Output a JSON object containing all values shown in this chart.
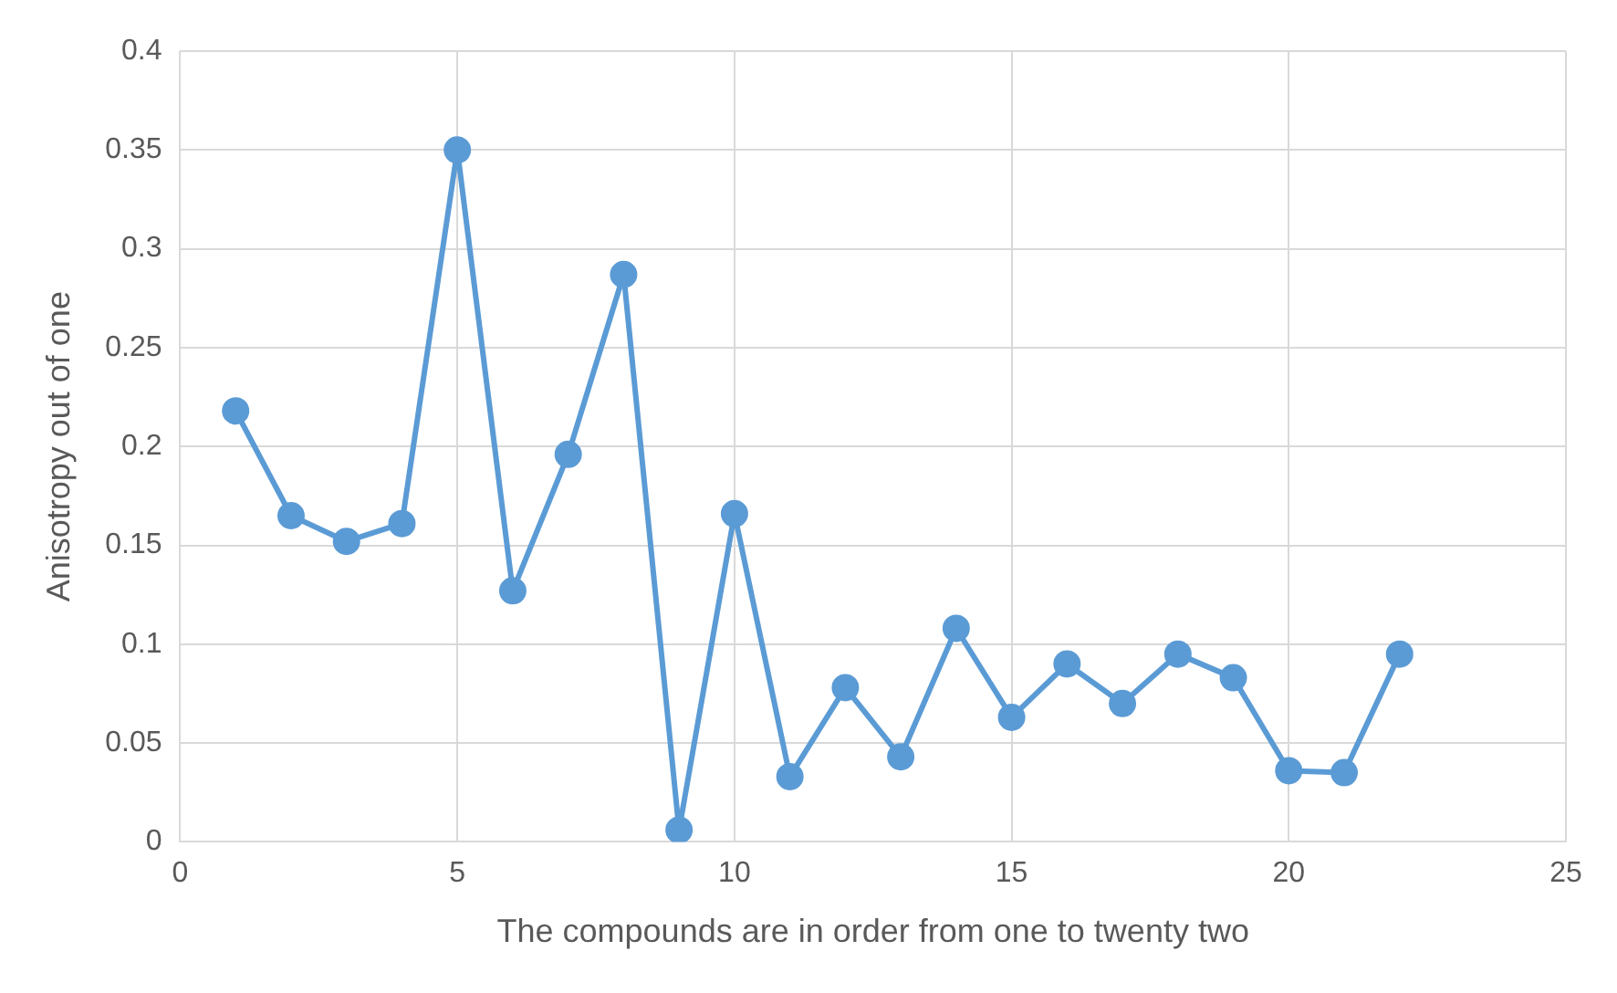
{
  "chart_data": {
    "type": "line",
    "xlabel": "The compounds are in order from one to twenty two",
    "ylabel": "Anisotropy out of one",
    "x": [
      1,
      2,
      3,
      4,
      5,
      6,
      7,
      8,
      9,
      10,
      11,
      12,
      13,
      14,
      15,
      16,
      17,
      18,
      19,
      20,
      21,
      22
    ],
    "series": [
      {
        "color": "#5b9bd5",
        "values": [
          0.218,
          0.165,
          0.152,
          0.161,
          0.35,
          0.127,
          0.196,
          0.287,
          0.006,
          0.166,
          0.033,
          0.078,
          0.043,
          0.108,
          0.063,
          0.09,
          0.07,
          0.095,
          0.083,
          0.036,
          0.035,
          0.095
        ]
      }
    ],
    "xlim": [
      0,
      25
    ],
    "xticks": [
      0,
      5,
      10,
      15,
      20,
      25
    ],
    "ylim": [
      0,
      0.4
    ],
    "yticks": [
      0,
      0.05,
      0.1,
      0.15,
      0.2,
      0.25,
      0.3,
      0.35,
      0.4
    ],
    "grid": true,
    "marker": "circle",
    "line_style": "solid",
    "legend": false
  }
}
